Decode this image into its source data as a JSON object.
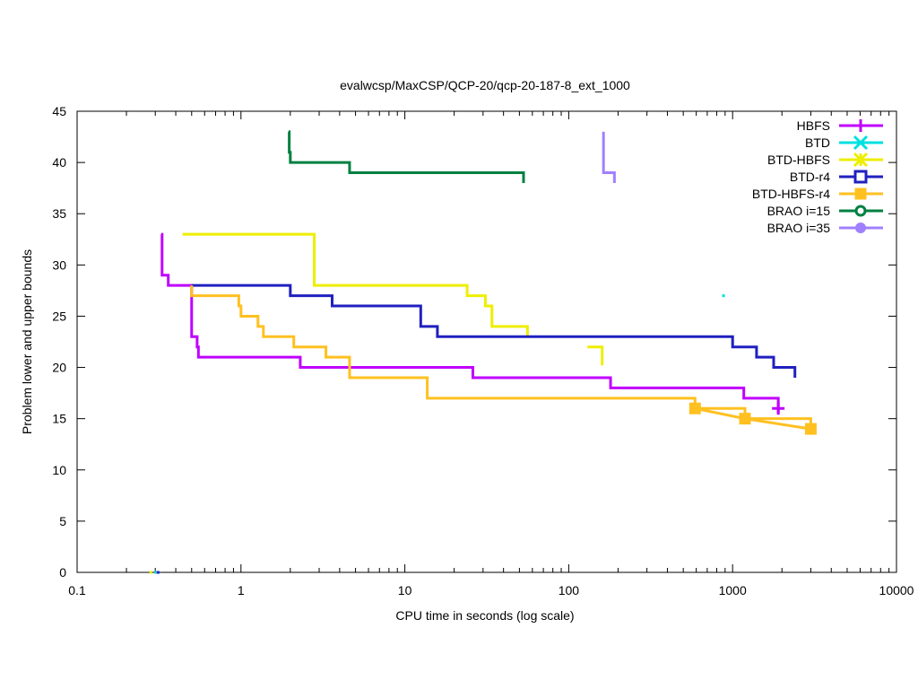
{
  "chart_data": {
    "type": "line",
    "title": "evalwcsp/MaxCSP/QCP-20/qcp-20-187-8_ext_1000",
    "xlabel": "CPU time in seconds (log scale)",
    "ylabel": "Problem lower and upper bounds",
    "xscale": "log",
    "xlim": [
      0.1,
      10000
    ],
    "ylim": [
      0,
      45
    ],
    "xticks": [
      0.1,
      1,
      10,
      100,
      1000,
      10000
    ],
    "xtick_labels": [
      "0.1",
      "1",
      "10",
      "100",
      "1000",
      "10000"
    ],
    "yticks": [
      0,
      5,
      10,
      15,
      20,
      25,
      30,
      35,
      40,
      45
    ],
    "ytick_labels": [
      "0",
      "5",
      "10",
      "15",
      "20",
      "25",
      "30",
      "35",
      "40",
      "45"
    ],
    "grid": false,
    "legend_position": "top-right",
    "series": [
      {
        "name": "HBFS",
        "color": "#c000ff",
        "marker": "plus",
        "step": true,
        "points": [
          [
            0.326,
            33
          ],
          [
            0.33,
            29
          ],
          [
            0.36,
            28
          ],
          [
            0.5,
            23
          ],
          [
            0.54,
            22
          ],
          [
            0.55,
            21
          ],
          [
            2.3,
            20
          ],
          [
            26,
            19
          ],
          [
            180,
            18
          ],
          [
            1170,
            17
          ],
          [
            1900,
            16
          ]
        ],
        "marker_points": [
          [
            1900,
            16
          ]
        ],
        "end": [
          1900,
          15.5
        ]
      },
      {
        "name": "BTD",
        "color": "#00e0e0",
        "marker": "cross",
        "step": true,
        "points": [
          [
            880,
            27
          ]
        ],
        "marker_points": []
      },
      {
        "name": "BTD-HBFS",
        "color": "#eeee00",
        "marker": "star",
        "step": true,
        "points": [
          [
            0.44,
            33
          ],
          [
            2.8,
            28
          ],
          [
            24,
            27
          ],
          [
            31,
            26
          ],
          [
            34,
            24
          ],
          [
            56,
            23
          ]
        ],
        "end": [
          56,
          23
        ],
        "segments2": [
          [
            130,
            22
          ],
          [
            160,
            21
          ]
        ],
        "marker_points": []
      },
      {
        "name": "BTD-r4",
        "color": "#2020c0",
        "marker": "open-square",
        "step": true,
        "points": [
          [
            0.5,
            28
          ],
          [
            2.0,
            27
          ],
          [
            3.6,
            26
          ],
          [
            12.5,
            24
          ],
          [
            15.8,
            23
          ],
          [
            1000,
            22
          ],
          [
            1400,
            21
          ],
          [
            1780,
            20
          ],
          [
            2400,
            19
          ]
        ],
        "marker_points": []
      },
      {
        "name": "BTD-HBFS-r4",
        "color": "#ffc020",
        "marker": "filled-square",
        "step": true,
        "points": [
          [
            0.5,
            28
          ],
          [
            0.5,
            27
          ],
          [
            0.97,
            26
          ],
          [
            1.0,
            25
          ],
          [
            1.27,
            24
          ],
          [
            1.37,
            23
          ],
          [
            2.1,
            22
          ],
          [
            3.3,
            21
          ],
          [
            4.6,
            19
          ],
          [
            13.7,
            17
          ],
          [
            590,
            16
          ]
        ],
        "extra_lines": [
          [
            [
              590,
              16
            ],
            [
              1190,
              16
            ],
            [
              1190,
              15
            ]
          ],
          [
            [
              1190,
              15
            ],
            [
              3000,
              15
            ],
            [
              3000,
              14
            ]
          ],
          [
            [
              590,
              16
            ],
            [
              1190,
              15
            ],
            [
              3000,
              14
            ]
          ]
        ],
        "marker_points": [
          [
            590,
            16
          ],
          [
            1190,
            15
          ],
          [
            3000,
            14
          ]
        ]
      },
      {
        "name": "BRAO i=15",
        "color": "#008040",
        "marker": "open-circle",
        "step": true,
        "points": [
          [
            1.95,
            43
          ],
          [
            1.97,
            41
          ],
          [
            2.0,
            40
          ],
          [
            4.6,
            39
          ],
          [
            53,
            38
          ]
        ],
        "marker_points": []
      },
      {
        "name": "BRAO i=35",
        "color": "#a080ff",
        "marker": "filled-circle",
        "step": true,
        "points": [
          [
            163,
            43
          ],
          [
            163,
            39
          ],
          [
            190,
            38
          ]
        ],
        "marker_points": []
      }
    ]
  }
}
